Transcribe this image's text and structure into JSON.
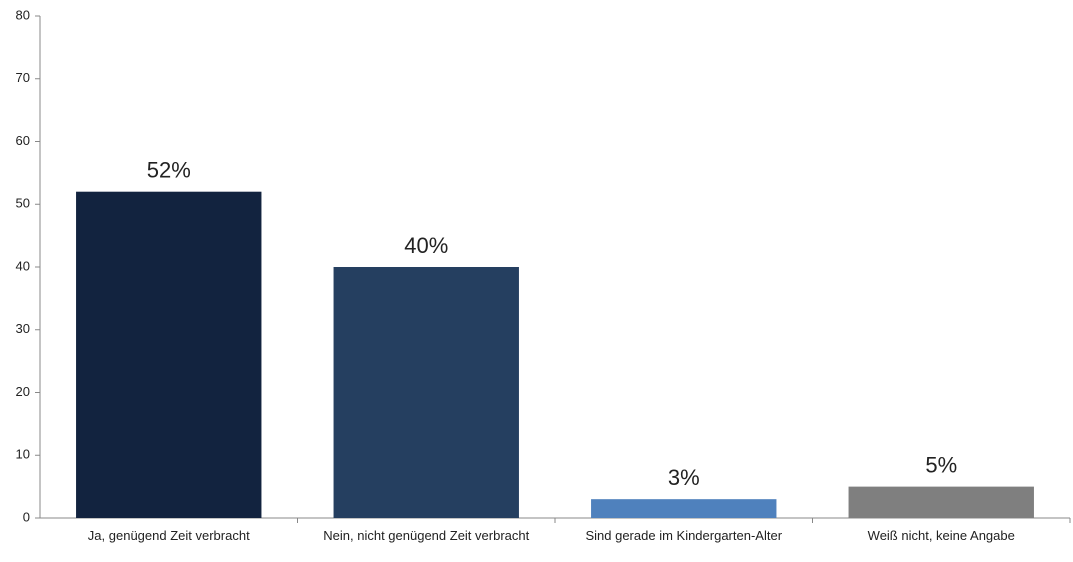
{
  "chart_data": {
    "type": "bar",
    "categories": [
      "Ja, genügend Zeit verbracht",
      "Nein, nicht genügend Zeit verbracht",
      "Sind gerade im Kindergarten-Alter",
      "Weiß nicht, keine Angabe"
    ],
    "values": [
      52,
      40,
      3,
      5
    ],
    "value_labels": [
      "52%",
      "40%",
      "3%",
      "5%"
    ],
    "colors": [
      "#12233f",
      "#253f60",
      "#4f81bd",
      "#7f7f7f"
    ],
    "ylim": [
      0,
      80
    ],
    "yticks": [
      0,
      10,
      20,
      30,
      40,
      50,
      60,
      70,
      80
    ],
    "grid": false
  }
}
